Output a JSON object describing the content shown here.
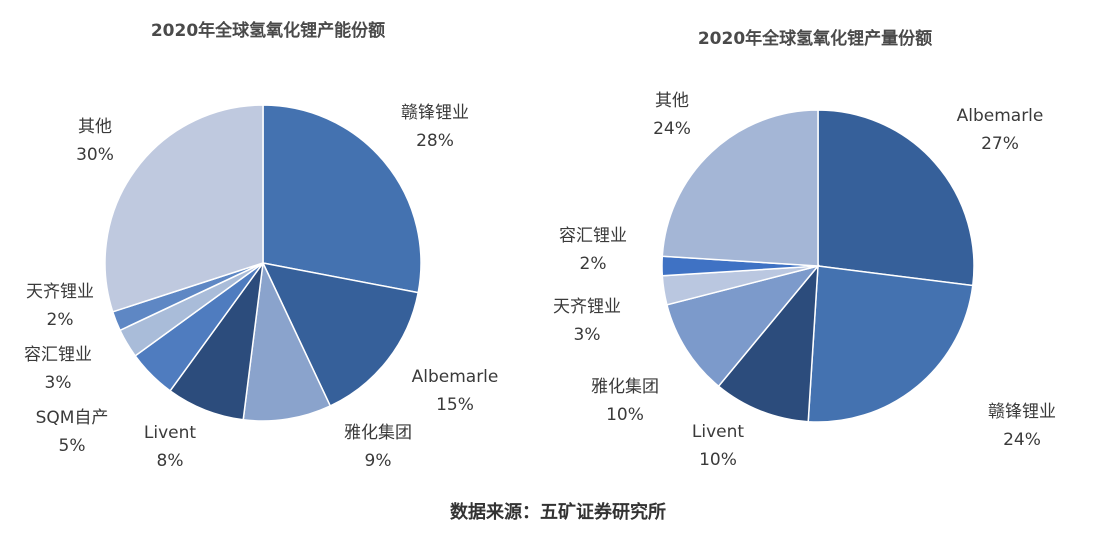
{
  "chart_data": [
    {
      "type": "pie",
      "title": "2020年全球氢氧化锂产能份额",
      "slices": [
        {
          "label": "赣锋锂业",
          "value": 28,
          "value_label": "28%",
          "color": "#4472b0"
        },
        {
          "label": "Albemarle",
          "value": 15,
          "value_label": "15%",
          "color": "#36609a"
        },
        {
          "label": "雅化集团",
          "value": 9,
          "value_label": "9%",
          "color": "#8aa3cc"
        },
        {
          "label": "Livent",
          "value": 8,
          "value_label": "8%",
          "color": "#2c4c7c"
        },
        {
          "label": "SQM自产",
          "value": 5,
          "value_label": "5%",
          "color": "#4f7cbf"
        },
        {
          "label": "容汇锂业",
          "value": 3,
          "value_label": "3%",
          "color": "#a9bcd9"
        },
        {
          "label": "天齐锂业",
          "value": 2,
          "value_label": "2%",
          "color": "#5e87c4"
        },
        {
          "label": "其他",
          "value": 30,
          "value_label": "30%",
          "color": "#bfc9df"
        }
      ]
    },
    {
      "type": "pie",
      "title": "2020年全球氢氧化锂产量份额",
      "slices": [
        {
          "label": "Albemarle",
          "value": 27,
          "value_label": "27%",
          "color": "#36609a"
        },
        {
          "label": "赣锋锂业",
          "value": 24,
          "value_label": "24%",
          "color": "#4472b0"
        },
        {
          "label": "Livent",
          "value": 10,
          "value_label": "10%",
          "color": "#2c4c7c"
        },
        {
          "label": "雅化集团",
          "value": 10,
          "value_label": "10%",
          "color": "#7c9acb"
        },
        {
          "label": "天齐锂业",
          "value": 3,
          "value_label": "3%",
          "color": "#bac7e0"
        },
        {
          "label": "容汇锂业",
          "value": 2,
          "value_label": "2%",
          "color": "#3f72c4"
        },
        {
          "label": "其他",
          "value": 24,
          "value_label": "24%",
          "color": "#a4b6d6"
        }
      ]
    }
  ],
  "source": "数据来源：五矿证券研究所"
}
